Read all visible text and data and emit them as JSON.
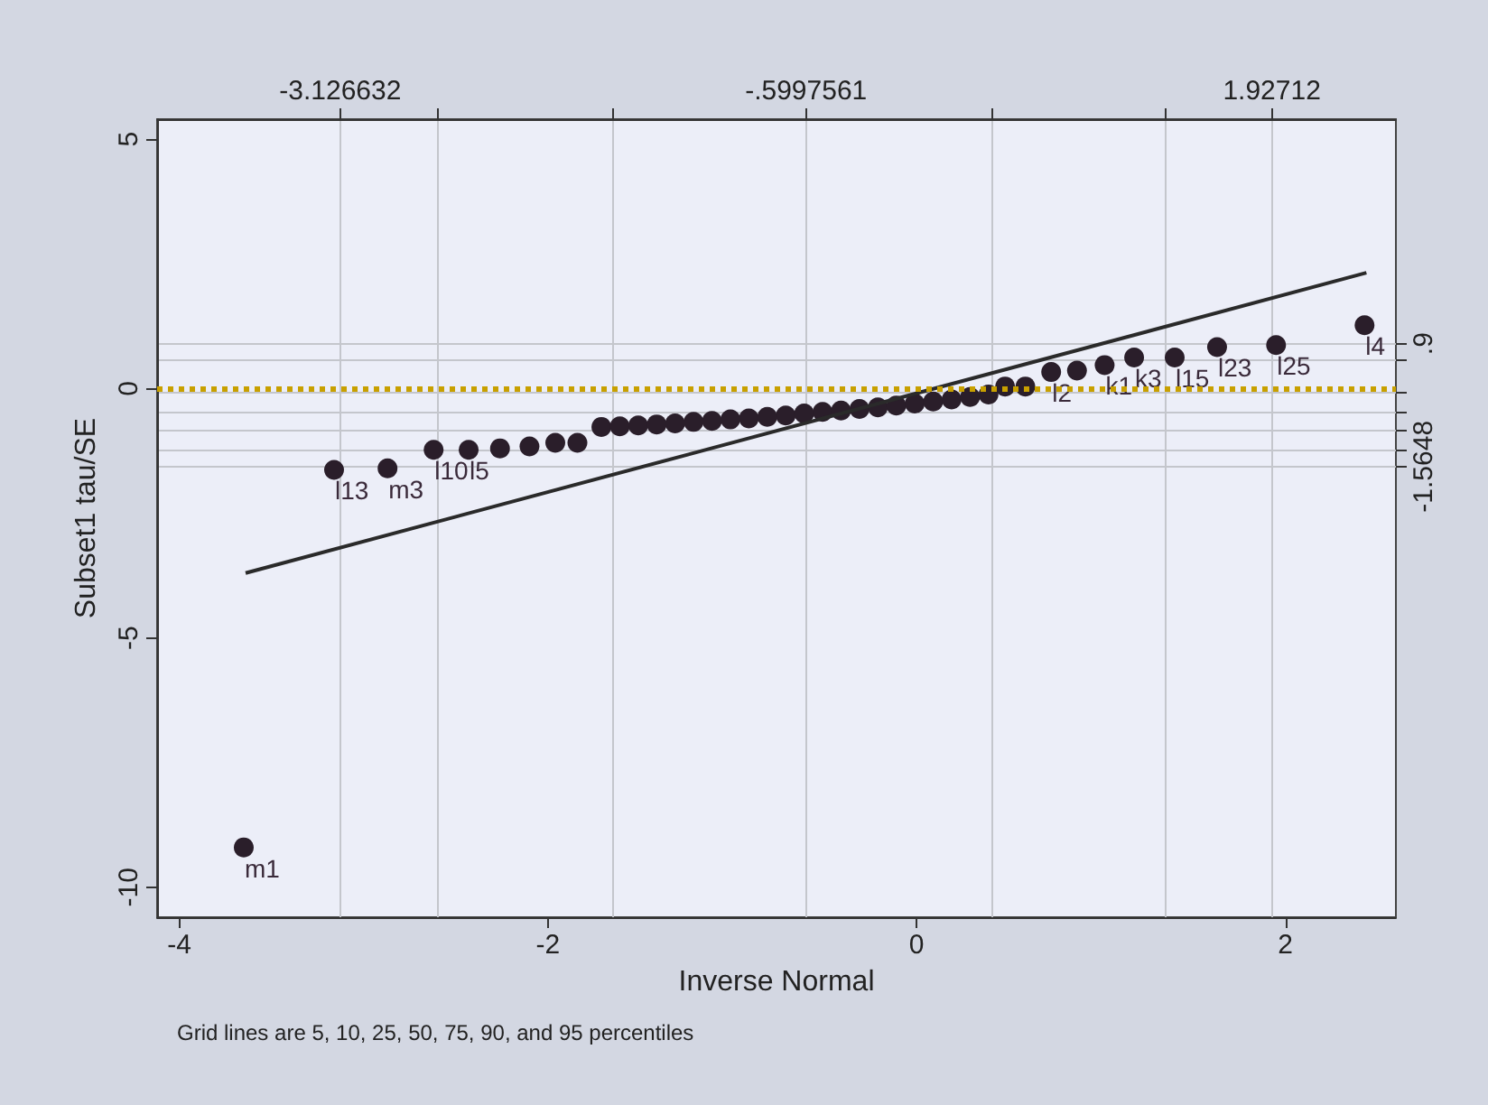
{
  "chart_data": {
    "type": "scatter",
    "xlabel": "Inverse Normal",
    "ylabel": "Subset1 tau/SE",
    "annotations": [
      "Grid lines are 5, 10, 25, 50, 75, 90, and 95 percentiles"
    ],
    "xlim": [
      -4.12,
      2.6
    ],
    "ylim": [
      -10.6,
      5.4
    ],
    "xticks": [
      -4,
      -2,
      0,
      2
    ],
    "yticks": [
      -10,
      -5,
      0,
      5
    ],
    "x2lim": [
      -4.12,
      2.6
    ],
    "x2ticks": [
      -3.126632,
      {
        "value": -2.6,
        "label": null
      },
      {
        "value": -1.65,
        "label": null
      },
      {
        "value": -0.5997561,
        "label": "-.5997561"
      },
      {
        "value": 0.41,
        "label": null
      },
      {
        "value": 1.35,
        "label": null
      },
      1.92712
    ],
    "y2lim": [
      -10.6,
      5.4
    ],
    "y2ticks": [
      -1.5648,
      {
        "value": -1.22,
        "label": null
      },
      {
        "value": -0.85,
        "label": null
      },
      {
        "value": -0.47,
        "label": null
      },
      {
        "value": -0.09,
        "label": null
      },
      {
        "value": 0.56,
        "label": null
      },
      {
        "value": 0.9,
        "label": ".9"
      }
    ],
    "grid": true,
    "ref_lines": [
      {
        "axis": "y",
        "value": 0,
        "color": "#c8a000",
        "line_style": "dotted"
      }
    ],
    "series": [
      {
        "color": "#2a1e2a",
        "marker": "circle",
        "x": [
          -3.65,
          -3.16,
          -2.87,
          -2.62,
          -2.43,
          -2.26,
          -2.1,
          -1.96,
          -1.84,
          -1.71,
          -1.61,
          -1.51,
          -1.41,
          -1.31,
          -1.21,
          -1.11,
          -1.01,
          -0.91,
          -0.81,
          -0.71,
          -0.61,
          -0.51,
          -0.41,
          -0.31,
          -0.21,
          -0.11,
          -0.01,
          0.09,
          0.19,
          0.29,
          0.39,
          0.48,
          0.59,
          0.73,
          0.87,
          1.02,
          1.18,
          1.4,
          1.63,
          1.95,
          2.43
        ],
        "values": [
          -9.2,
          -1.63,
          -1.6,
          -1.23,
          -1.23,
          -1.2,
          -1.16,
          -1.09,
          -1.09,
          -0.77,
          -0.76,
          -0.74,
          -0.72,
          -0.7,
          -0.67,
          -0.65,
          -0.62,
          -0.6,
          -0.57,
          -0.54,
          -0.5,
          -0.47,
          -0.44,
          -0.41,
          -0.38,
          -0.34,
          -0.3,
          -0.26,
          -0.22,
          -0.17,
          -0.12,
          0.04,
          0.04,
          0.33,
          0.36,
          0.47,
          0.62,
          0.62,
          0.83,
          0.87,
          1.27
        ],
        "value_labels": [
          "m1",
          "l13",
          "m3",
          "l10",
          "l5",
          null,
          null,
          null,
          null,
          null,
          null,
          null,
          null,
          null,
          null,
          null,
          null,
          null,
          null,
          null,
          null,
          null,
          null,
          null,
          null,
          null,
          null,
          null,
          null,
          null,
          null,
          null,
          null,
          "l2",
          null,
          "k1",
          "k3",
          "l15",
          "l23",
          "l25",
          "l4"
        ]
      },
      {
        "type": "line",
        "color": "#2a2a2a",
        "marker": "none",
        "line_style": "solid",
        "x": [
          -3.64,
          2.44
        ],
        "values": [
          -3.7,
          2.32
        ]
      }
    ]
  }
}
